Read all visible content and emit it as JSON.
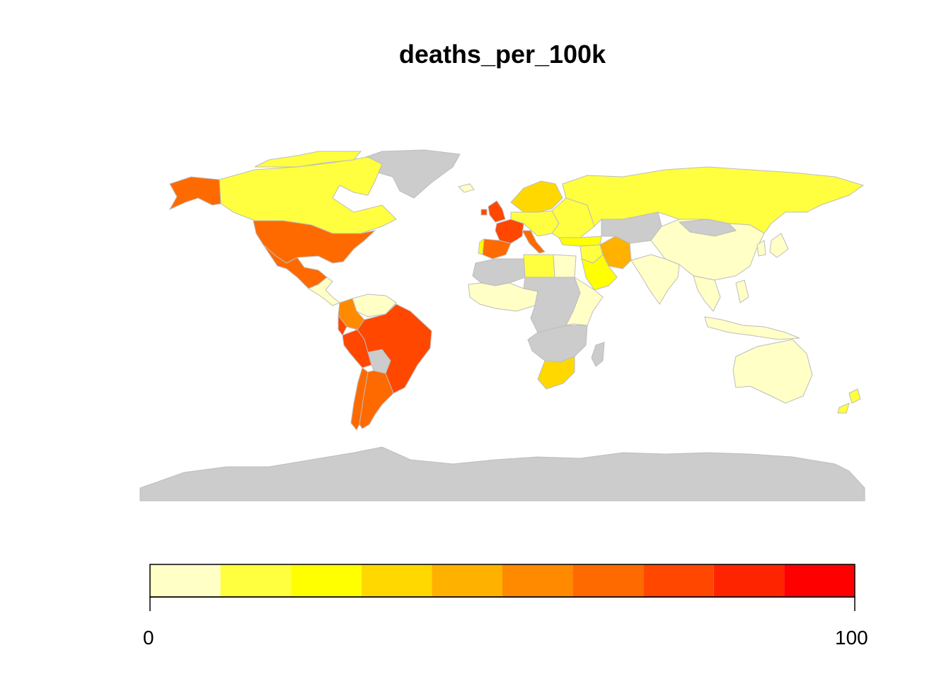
{
  "title": "deaths_per_100k",
  "colors": {
    "no_data": "#cccccc",
    "border": "#bdbdbd",
    "ocean": "#ffffff"
  },
  "legend": {
    "min_label": "0",
    "max_label": "100",
    "breaks": [
      0,
      10,
      20,
      30,
      40,
      50,
      60,
      70,
      80,
      90,
      100
    ],
    "palette": [
      "#ffffc6",
      "#ffff3f",
      "#ffff00",
      "#ffd800",
      "#ffb100",
      "#ff8a00",
      "#ff6a00",
      "#ff4700",
      "#ff2400",
      "#ff0000"
    ]
  },
  "regions": [
    {
      "name": "Greenland",
      "value": null
    },
    {
      "name": "Canada",
      "value": 15
    },
    {
      "name": "Alaska",
      "value": 65
    },
    {
      "name": "United States",
      "value": 65
    },
    {
      "name": "Mexico",
      "value": 65
    },
    {
      "name": "Central America",
      "value": 5
    },
    {
      "name": "Venezuela",
      "value": 5
    },
    {
      "name": "Colombia",
      "value": 55
    },
    {
      "name": "Ecuador",
      "value": 75
    },
    {
      "name": "Peru",
      "value": 75
    },
    {
      "name": "Bolivia",
      "value": null
    },
    {
      "name": "Brazil",
      "value": 75
    },
    {
      "name": "Chile",
      "value": 65
    },
    {
      "name": "Argentina",
      "value": 65
    },
    {
      "name": "Iceland",
      "value": 5
    },
    {
      "name": "Scandinavia",
      "value": 35
    },
    {
      "name": "United Kingdom",
      "value": 75
    },
    {
      "name": "France",
      "value": 75
    },
    {
      "name": "Spain",
      "value": 65
    },
    {
      "name": "Portugal",
      "value": 20
    },
    {
      "name": "Italy",
      "value": 65
    },
    {
      "name": "Central Europe",
      "value": 15
    },
    {
      "name": "Eastern Europe",
      "value": 15
    },
    {
      "name": "Russia",
      "value": 15
    },
    {
      "name": "Turkey",
      "value": 20
    },
    {
      "name": "Iran",
      "value": 40
    },
    {
      "name": "Saudi Arabia",
      "value": 20
    },
    {
      "name": "Middle East",
      "value": 15
    },
    {
      "name": "Central Asia",
      "value": null
    },
    {
      "name": "China",
      "value": 5
    },
    {
      "name": "Mongolia",
      "value": null
    },
    {
      "name": "India",
      "value": 5
    },
    {
      "name": "Southeast Asia",
      "value": 5
    },
    {
      "name": "Japan",
      "value": 5
    },
    {
      "name": "Korea",
      "value": 5
    },
    {
      "name": "Indonesia",
      "value": 5
    },
    {
      "name": "Philippines",
      "value": 5
    },
    {
      "name": "Australia",
      "value": 5
    },
    {
      "name": "New Zealand",
      "value": 15
    },
    {
      "name": "North Africa",
      "value": null
    },
    {
      "name": "Libya",
      "value": 15
    },
    {
      "name": "Egypt",
      "value": 5
    },
    {
      "name": "West Africa",
      "value": 5
    },
    {
      "name": "Central Africa",
      "value": null
    },
    {
      "name": "East Africa",
      "value": 5
    },
    {
      "name": "Southern Africa",
      "value": null
    },
    {
      "name": "South Africa",
      "value": 35
    },
    {
      "name": "Madagascar",
      "value": null
    },
    {
      "name": "Antarctica",
      "value": null
    }
  ]
}
